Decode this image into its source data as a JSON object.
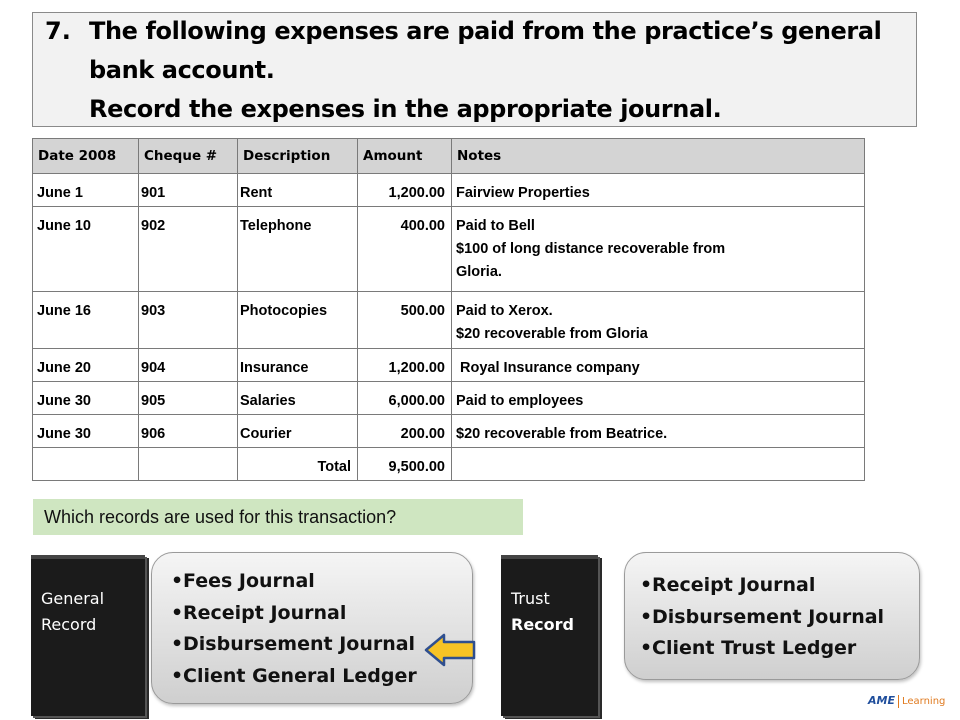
{
  "title": {
    "number": "7.",
    "line1": "The following expenses are paid from the practice’s general",
    "line2": "bank account.",
    "line3": "Record the expenses in the appropriate journal."
  },
  "table": {
    "headers": [
      "Date 2008",
      "Cheque #",
      "Description",
      "Amount",
      "Notes"
    ],
    "rows": [
      {
        "date": "June 1",
        "cheque": "901",
        "description": "Rent",
        "amount": "1,200.00",
        "notes": [
          "Fairview Properties"
        ]
      },
      {
        "date": "June 10",
        "cheque": "902",
        "description": "Telephone",
        "amount": "400.00",
        "notes": [
          "Paid to Bell",
          "$100 of long distance recoverable from",
          "Gloria."
        ]
      },
      {
        "date": "June 16",
        "cheque": "903",
        "description": "Photocopies",
        "amount": "500.00",
        "notes": [
          "Paid to Xerox.",
          "$20 recoverable from Gloria"
        ]
      },
      {
        "date": "June 20",
        "cheque": "904",
        "description": "Insurance",
        "amount": "1,200.00",
        "notes": [
          " Royal Insurance company"
        ]
      },
      {
        "date": "June 30",
        "cheque": "905",
        "description": "Salaries",
        "amount": "6,000.00",
        "notes": [
          "Paid to employees"
        ]
      },
      {
        "date": "June 30",
        "cheque": "906",
        "description": "Courier",
        "amount": "200.00",
        "notes": [
          "$20 recoverable from Beatrice."
        ]
      }
    ],
    "total_label": "Total",
    "total_amount": "9,500.00"
  },
  "question": "Which records are used for this transaction?",
  "general_book": {
    "line1": "General",
    "line2": "Record"
  },
  "general_list": [
    "Fees Journal",
    "Receipt Journal",
    "Disbursement Journal",
    "Client General Ledger"
  ],
  "trust_book": {
    "line1": "Trust",
    "line2": "Record"
  },
  "trust_list": [
    "Receipt Journal",
    "Disbursement Journal",
    "Client Trust Ledger"
  ],
  "brand": {
    "ame": "AME",
    "learning": "Learning"
  },
  "colors": {
    "question_bg": "#cfe6c1",
    "arrow_fill": "#f7c325",
    "arrow_stroke": "#2f4f8f",
    "header_bg": "#d4d4d4"
  }
}
